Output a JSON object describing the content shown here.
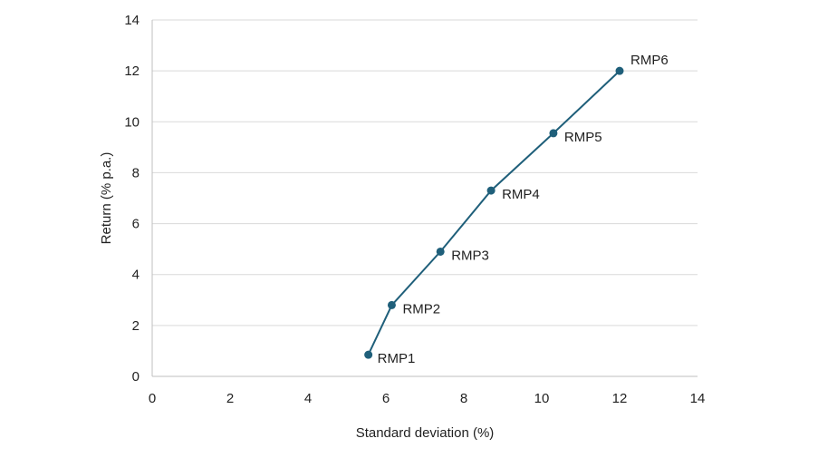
{
  "chart_data": {
    "type": "line",
    "title": "",
    "xlabel": "Standard deviation (%)",
    "ylabel": "Return (% p.a.)",
    "xlim": [
      0,
      14
    ],
    "ylim": [
      0,
      14
    ],
    "xticks": [
      0,
      2,
      4,
      6,
      8,
      10,
      12,
      14
    ],
    "yticks": [
      0,
      2,
      4,
      6,
      8,
      10,
      12,
      14
    ],
    "grid": "horizontal",
    "legend": "none",
    "series": [
      {
        "color": "#1f5f7a",
        "points": [
          {
            "label": "RMP1",
            "x": 5.55,
            "y": 0.85
          },
          {
            "label": "RMP2",
            "x": 6.15,
            "y": 2.8
          },
          {
            "label": "RMP3",
            "x": 7.4,
            "y": 4.9
          },
          {
            "label": "RMP4",
            "x": 8.7,
            "y": 7.3
          },
          {
            "label": "RMP5",
            "x": 10.3,
            "y": 9.55
          },
          {
            "label": "RMP6",
            "x": 12.0,
            "y": 12.0
          }
        ]
      }
    ],
    "colors": {
      "grid": "#d9d9d9",
      "axis": "#bfbfbf",
      "text": "#222222"
    }
  }
}
